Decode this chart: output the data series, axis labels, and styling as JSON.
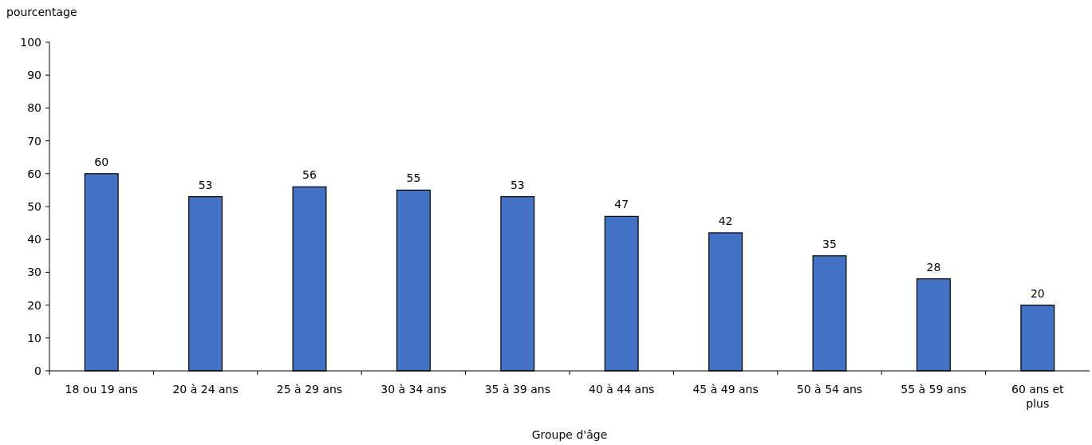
{
  "chart_data": {
    "type": "bar",
    "ylabel": "pourcentage",
    "xlabel": "Groupe d'âge",
    "categories": [
      "18 ou 19 ans",
      "20 à 24 ans",
      "25 à 29 ans",
      "30 à 34 ans",
      "35 à 39 ans",
      "40 à 44 ans",
      "45 à 49 ans",
      "50 à 54 ans",
      "55 à 59 ans",
      "60 ans et plus"
    ],
    "values": [
      60,
      53,
      56,
      55,
      53,
      47,
      42,
      35,
      28,
      20
    ],
    "color": "#4472c4",
    "ylim": [
      0,
      100
    ],
    "yticks": [
      0,
      10,
      20,
      30,
      40,
      50,
      60,
      70,
      80,
      90,
      100
    ],
    "grid": false,
    "data_labels": true
  }
}
